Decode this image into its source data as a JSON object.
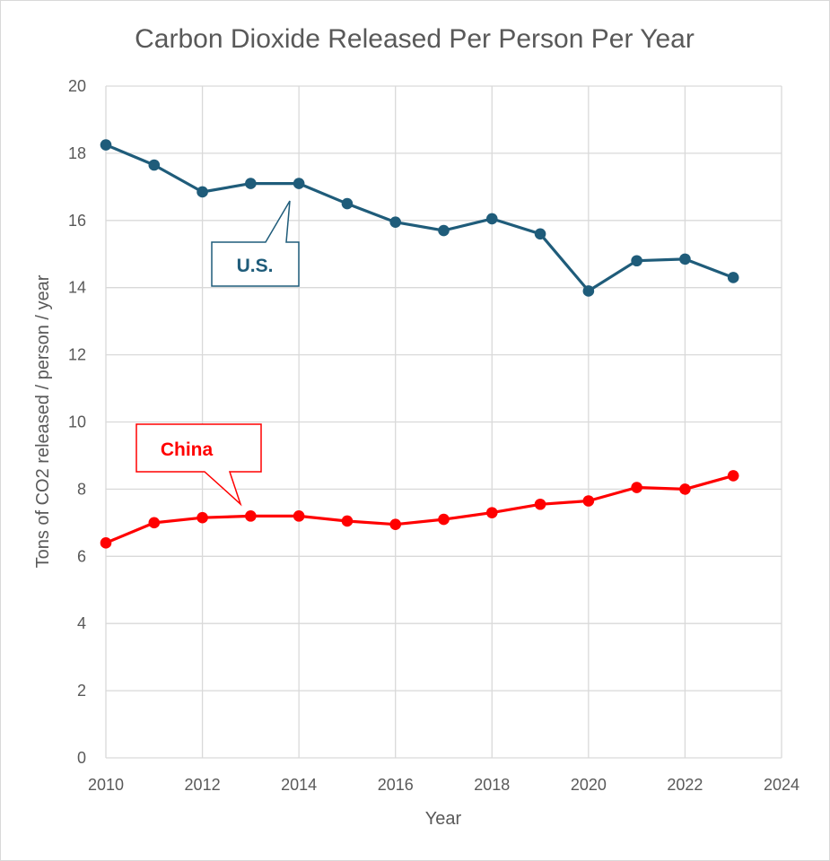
{
  "chart_data": {
    "type": "line",
    "title": "Carbon Dioxide Released Per Person Per Year",
    "xlabel": "Year",
    "ylabel": "Tons of CO2 released / person / year",
    "xlim": [
      2010,
      2024
    ],
    "ylim": [
      0,
      20
    ],
    "x_ticks": [
      "2010",
      "2012",
      "2014",
      "2016",
      "2018",
      "2020",
      "2022",
      "2024"
    ],
    "y_ticks": [
      "0",
      "2",
      "4",
      "6",
      "8",
      "10",
      "12",
      "14",
      "16",
      "18",
      "20"
    ],
    "grid": true,
    "x": [
      2010,
      2011,
      2012,
      2013,
      2014,
      2015,
      2016,
      2017,
      2018,
      2019,
      2020,
      2021,
      2022,
      2023
    ],
    "series": [
      {
        "name": "U.S.",
        "color": "#1f5c7a",
        "values": [
          18.25,
          17.65,
          16.85,
          17.1,
          17.1,
          16.5,
          15.95,
          15.7,
          16.05,
          15.6,
          13.9,
          14.8,
          14.85,
          14.3
        ]
      },
      {
        "name": "China",
        "color": "#ff0000",
        "values": [
          6.4,
          7.0,
          7.15,
          7.2,
          7.2,
          7.05,
          6.95,
          7.1,
          7.3,
          7.55,
          7.65,
          8.05,
          8.0,
          8.4
        ]
      }
    ]
  }
}
